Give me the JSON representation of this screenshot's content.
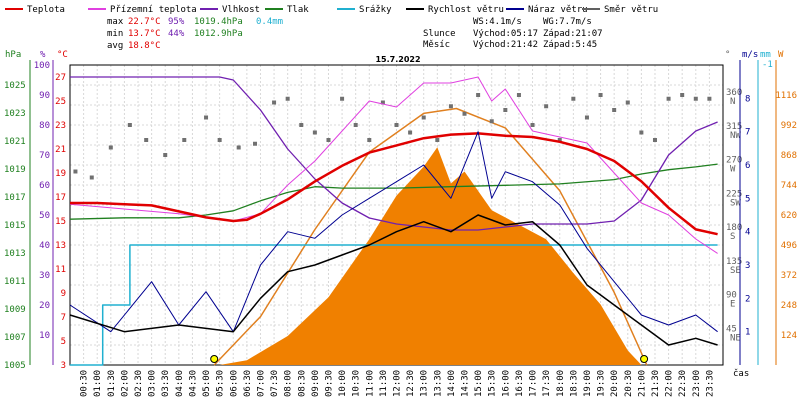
{
  "chart_data": {
    "type": "line",
    "title": "15.7.2022",
    "legend": [
      {
        "name": "Teplota",
        "color": "#e00000"
      },
      {
        "name": "Přízemní teplota",
        "color": "#e040e0"
      },
      {
        "name": "Vlhkost",
        "color": "#7020b0"
      },
      {
        "name": "Tlak",
        "color": "#208020"
      },
      {
        "name": "Srážky",
        "color": "#20b0d0"
      },
      {
        "name": "Rychlost větru",
        "color": "#000000"
      },
      {
        "name": "Náraz větru",
        "color": "#000090"
      },
      {
        "name": "Směr větru",
        "color": "#606060"
      }
    ],
    "stats": {
      "max_label": "max",
      "max_temp": "22.7°C",
      "max_hum": "95%",
      "max_press": "1019.4hPa",
      "rain": "0.4mm",
      "min_label": "min",
      "min_temp": "13.7°C",
      "min_hum": "44%",
      "min_press": "1012.9hPa",
      "avg_label": "avg",
      "avg_temp": "18.8°C",
      "ws": "WS:4.1m/s",
      "wg": "WG:7.7m/s",
      "sun_label": "Slunce",
      "sunrise": "Východ:05:17",
      "sunset": "Západ:21:07",
      "moon_label": "Měsíc",
      "moonrise": "Východ:21:42",
      "moonset": "Západ:5:45"
    },
    "axes": {
      "hpa_unit": "hPa",
      "pct_unit": "%",
      "c_unit": "°C",
      "deg_unit": "°",
      "ms_unit": "m/s",
      "mm_unit": "mm",
      "w_unit": "W",
      "hpa_ticks": [
        "1005",
        "1007",
        "1009",
        "1011",
        "1013",
        "1015",
        "1017",
        "1019",
        "1021",
        "1023",
        "1025"
      ],
      "pct_ticks": [
        "10",
        "20",
        "30",
        "40",
        "50",
        "60",
        "70",
        "80",
        "90",
        "100"
      ],
      "c_ticks": [
        "3",
        "5",
        "7",
        "9",
        "11",
        "13",
        "15",
        "17",
        "19",
        "21",
        "23",
        "25",
        "27"
      ],
      "dir_ticks": [
        {
          "deg": "360",
          "dir": "N"
        },
        {
          "deg": "315",
          "dir": "NW"
        },
        {
          "deg": "270",
          "dir": "W"
        },
        {
          "deg": "225",
          "dir": "SW"
        },
        {
          "deg": "180",
          "dir": "S"
        },
        {
          "deg": "135",
          "dir": "SE"
        },
        {
          "deg": "90",
          "dir": "E"
        },
        {
          "deg": "45",
          "dir": "NE"
        }
      ],
      "ms_ticks": [
        "1",
        "2",
        "3",
        "4",
        "5",
        "6",
        "7",
        "8"
      ],
      "mm_ticks": [
        "-1"
      ],
      "w_ticks": [
        "124",
        "248",
        "372",
        "496",
        "620",
        "744",
        "868",
        "992",
        "1116"
      ],
      "x_ticks": [
        "00:30",
        "01:00",
        "01:30",
        "02:00",
        "02:30",
        "03:00",
        "03:30",
        "04:00",
        "04:30",
        "05:00",
        "05:30",
        "06:00",
        "06:30",
        "07:00",
        "07:30",
        "08:00",
        "08:30",
        "09:00",
        "09:30",
        "10:00",
        "10:30",
        "11:00",
        "11:30",
        "12:00",
        "12:30",
        "13:00",
        "13:30",
        "14:00",
        "14:30",
        "15:00",
        "15:30",
        "16:00",
        "16:30",
        "17:00",
        "17:30",
        "18:00",
        "18:30",
        "19:00",
        "19:30",
        "20:00",
        "20:30",
        "21:00",
        "21:30",
        "22:00",
        "22:30",
        "23:00",
        "23:30"
      ],
      "x_unit": "čas"
    },
    "temp": [
      [
        0,
        16.5
      ],
      [
        1,
        16.5
      ],
      [
        2,
        16.4
      ],
      [
        3,
        16.3
      ],
      [
        4,
        15.8
      ],
      [
        5,
        15.3
      ],
      [
        6,
        15.0
      ],
      [
        6.5,
        15.1
      ],
      [
        7,
        15.6
      ],
      [
        8,
        16.8
      ],
      [
        9,
        18.3
      ],
      [
        10,
        19.6
      ],
      [
        11,
        20.7
      ],
      [
        12,
        21.3
      ],
      [
        13,
        21.9
      ],
      [
        14,
        22.2
      ],
      [
        15,
        22.3
      ],
      [
        16,
        22.1
      ],
      [
        17,
        22.0
      ],
      [
        18,
        21.6
      ],
      [
        19,
        21.0
      ],
      [
        20,
        20.0
      ],
      [
        21,
        18.3
      ],
      [
        22,
        16.1
      ],
      [
        23,
        14.3
      ],
      [
        23.8,
        13.9
      ]
    ],
    "ground_temp": [
      [
        0,
        16.4
      ],
      [
        2,
        16.0
      ],
      [
        4,
        15.6
      ],
      [
        6,
        15.0
      ],
      [
        7,
        15.6
      ],
      [
        8,
        18.0
      ],
      [
        9,
        20.0
      ],
      [
        10,
        22.5
      ],
      [
        11,
        25.0
      ],
      [
        12,
        24.5
      ],
      [
        13,
        26.5
      ],
      [
        14,
        26.5
      ],
      [
        15,
        27.0
      ],
      [
        15.5,
        25.0
      ],
      [
        16,
        26.0
      ],
      [
        17,
        22.5
      ],
      [
        18,
        22.0
      ],
      [
        19,
        21.5
      ],
      [
        20,
        19.0
      ],
      [
        21,
        16.5
      ],
      [
        22,
        15.5
      ],
      [
        23,
        13.5
      ],
      [
        23.8,
        12.3
      ]
    ],
    "humidity": [
      [
        0,
        96
      ],
      [
        2,
        96
      ],
      [
        4,
        96
      ],
      [
        5.5,
        96
      ],
      [
        6,
        95
      ],
      [
        7,
        85
      ],
      [
        8,
        72
      ],
      [
        9,
        62
      ],
      [
        10,
        54
      ],
      [
        11,
        49
      ],
      [
        12,
        47
      ],
      [
        13,
        46
      ],
      [
        14,
        45
      ],
      [
        15,
        45
      ],
      [
        16,
        46
      ],
      [
        17,
        47
      ],
      [
        18,
        47
      ],
      [
        19,
        47
      ],
      [
        20,
        48
      ],
      [
        21,
        55
      ],
      [
        22,
        70
      ],
      [
        23,
        78
      ],
      [
        23.8,
        81
      ]
    ],
    "pressure": [
      [
        0,
        1015.3
      ],
      [
        2,
        1015.4
      ],
      [
        4,
        1015.4
      ],
      [
        5,
        1015.6
      ],
      [
        6,
        1015.9
      ],
      [
        7,
        1016.6
      ],
      [
        8,
        1017.2
      ],
      [
        9,
        1017.6
      ],
      [
        10,
        1017.5
      ],
      [
        12,
        1017.5
      ],
      [
        14,
        1017.6
      ],
      [
        16,
        1017.7
      ],
      [
        18,
        1017.8
      ],
      [
        20,
        1018.1
      ],
      [
        21,
        1018.5
      ],
      [
        22,
        1018.8
      ],
      [
        23,
        1019.0
      ],
      [
        23.8,
        1019.2
      ]
    ],
    "rain_mm": [
      [
        0,
        0
      ],
      [
        1.2,
        0
      ],
      [
        1.2,
        0.15
      ],
      [
        2.2,
        0.15
      ],
      [
        2.2,
        0.4
      ],
      [
        23.8,
        0.4
      ]
    ],
    "solar_w": [
      [
        0,
        0
      ],
      [
        5.5,
        0
      ],
      [
        6.5,
        20
      ],
      [
        8,
        120
      ],
      [
        9.5,
        280
      ],
      [
        11,
        520
      ],
      [
        12,
        700
      ],
      [
        13,
        820
      ],
      [
        13.5,
        900
      ],
      [
        14,
        750
      ],
      [
        14.5,
        800
      ],
      [
        15.5,
        640
      ],
      [
        16.5,
        580
      ],
      [
        17.5,
        520
      ],
      [
        18.5,
        380
      ],
      [
        19.5,
        250
      ],
      [
        20.5,
        60
      ],
      [
        21,
        0
      ],
      [
        23.8,
        0
      ]
    ],
    "solar_theory_w": [
      [
        5.3,
        0
      ],
      [
        7,
        200
      ],
      [
        9,
        560
      ],
      [
        11,
        880
      ],
      [
        13,
        1040
      ],
      [
        14.2,
        1060
      ],
      [
        16,
        980
      ],
      [
        18,
        720
      ],
      [
        20,
        300
      ],
      [
        21.2,
        0
      ]
    ],
    "wind_speed": [
      [
        0,
        1.5
      ],
      [
        2,
        1.0
      ],
      [
        4,
        1.2
      ],
      [
        6,
        1.0
      ],
      [
        7,
        2.0
      ],
      [
        8,
        2.8
      ],
      [
        9,
        3.0
      ],
      [
        10,
        3.3
      ],
      [
        11,
        3.6
      ],
      [
        12,
        4.0
      ],
      [
        13,
        4.3
      ],
      [
        14,
        4.0
      ],
      [
        15,
        4.5
      ],
      [
        16,
        4.2
      ],
      [
        17,
        4.3
      ],
      [
        18,
        3.6
      ],
      [
        19,
        2.4
      ],
      [
        20,
        1.8
      ],
      [
        21,
        1.2
      ],
      [
        22,
        0.6
      ],
      [
        23,
        0.8
      ],
      [
        23.8,
        0.6
      ]
    ],
    "wind_gust": [
      [
        0,
        1.8
      ],
      [
        1.5,
        1.0
      ],
      [
        3,
        2.5
      ],
      [
        4,
        1.2
      ],
      [
        5,
        2.2
      ],
      [
        6,
        1.0
      ],
      [
        7,
        3.0
      ],
      [
        8,
        4.0
      ],
      [
        9,
        3.8
      ],
      [
        10,
        4.5
      ],
      [
        11,
        5.0
      ],
      [
        12,
        5.5
      ],
      [
        13,
        6.0
      ],
      [
        14,
        5.0
      ],
      [
        15,
        7.0
      ],
      [
        15.5,
        5.0
      ],
      [
        16,
        5.8
      ],
      [
        17,
        5.5
      ],
      [
        18,
        4.8
      ],
      [
        19,
        3.5
      ],
      [
        20,
        2.5
      ],
      [
        21,
        1.5
      ],
      [
        22,
        1.2
      ],
      [
        23,
        1.5
      ],
      [
        23.8,
        1.0
      ]
    ],
    "wind_dir_deg": [
      [
        0.2,
        258
      ],
      [
        0.8,
        250
      ],
      [
        1.5,
        290
      ],
      [
        2.2,
        320
      ],
      [
        2.8,
        300
      ],
      [
        3.5,
        280
      ],
      [
        4.2,
        300
      ],
      [
        5.0,
        330
      ],
      [
        5.5,
        300
      ],
      [
        6.2,
        290
      ],
      [
        6.8,
        295
      ],
      [
        7.5,
        350
      ],
      [
        8.0,
        355
      ],
      [
        8.5,
        320
      ],
      [
        9.0,
        310
      ],
      [
        9.5,
        300
      ],
      [
        10.0,
        355
      ],
      [
        10.5,
        320
      ],
      [
        11.0,
        300
      ],
      [
        11.5,
        350
      ],
      [
        12.0,
        320
      ],
      [
        12.5,
        310
      ],
      [
        13.0,
        330
      ],
      [
        13.5,
        300
      ],
      [
        14.0,
        345
      ],
      [
        14.5,
        335
      ],
      [
        15.0,
        360
      ],
      [
        15.5,
        325
      ],
      [
        16.0,
        340
      ],
      [
        16.5,
        360
      ],
      [
        17.0,
        320
      ],
      [
        17.5,
        345
      ],
      [
        18.0,
        300
      ],
      [
        18.5,
        355
      ],
      [
        19.0,
        330
      ],
      [
        19.5,
        360
      ],
      [
        20.0,
        340
      ],
      [
        20.5,
        350
      ],
      [
        21.0,
        310
      ],
      [
        21.5,
        300
      ],
      [
        22.0,
        355
      ],
      [
        22.5,
        360
      ],
      [
        23.0,
        355
      ],
      [
        23.5,
        355
      ]
    ],
    "ranges": {
      "x": [
        0,
        24
      ],
      "temp_c": [
        3,
        28
      ],
      "solar_w": [
        0,
        1240
      ],
      "wind_ms": [
        0,
        9
      ],
      "dir_deg": [
        0,
        400
      ]
    }
  }
}
